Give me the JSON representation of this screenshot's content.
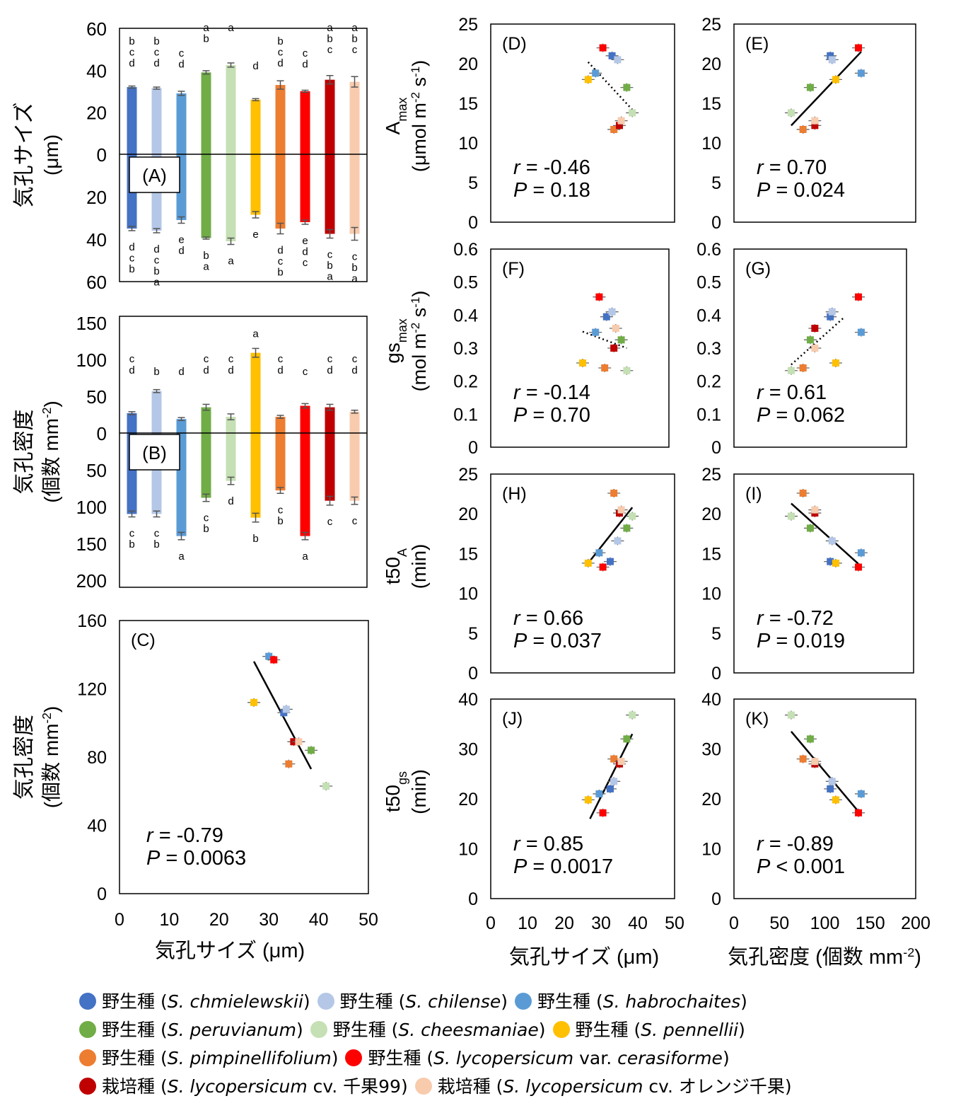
{
  "species": [
    {
      "label": "野生種",
      "name": "S. chmielewskii",
      "extra": "",
      "color": "#4472C4"
    },
    {
      "label": "野生種",
      "name": "S. chilense",
      "extra": "",
      "color": "#B4C7E7"
    },
    {
      "label": "野生種",
      "name": "S. habrochaites",
      "extra": "",
      "color": "#5B9BD5"
    },
    {
      "label": "野生種",
      "name": "S. peruvianum",
      "extra": "",
      "color": "#70AD47"
    },
    {
      "label": "野生種",
      "name": "S. cheesmaniae",
      "extra": "",
      "color": "#C5E0B4"
    },
    {
      "label": "野生種",
      "name": "S. pennellii",
      "extra": "",
      "color": "#FFC000"
    },
    {
      "label": "野生種",
      "name": "S. pimpinellifolium",
      "extra": "",
      "color": "#ED7D31"
    },
    {
      "label": "野生種",
      "name": "S. lycopersicum",
      "extra": "var. cerasiforme",
      "color": "#FF0000"
    },
    {
      "label": "栽培種",
      "name": "S. lycopersicum",
      "extra": "cv. 千果99",
      "color": "#C00000"
    },
    {
      "label": "栽培種",
      "name": "S. lycopersicum",
      "extra": "cv. オレンジ千果",
      "color": "#F8CBAD"
    }
  ],
  "legend_rows": [
    [
      0,
      1,
      2
    ],
    [
      3,
      4,
      5
    ],
    [
      6,
      7
    ],
    [
      8,
      9
    ]
  ],
  "chart_data": [
    {
      "panel": "(A)",
      "type": "bar",
      "ylabel": "気孔サイズ",
      "ylabel_unit": "(μm)",
      "upper_ticks": [
        "60",
        "40",
        "20",
        "0"
      ],
      "lower_ticks": [
        "20",
        "40",
        "60"
      ],
      "upper": {
        "values": [
          32,
          31.5,
          29,
          39,
          42.5,
          26,
          33,
          30,
          35.5,
          34.5
        ],
        "errors": [
          0.5,
          0.5,
          1,
          0.8,
          1,
          0.5,
          2,
          0.5,
          2,
          2.5
        ],
        "letters": [
          [
            "b",
            "c",
            "d"
          ],
          [
            "b",
            "c",
            "d"
          ],
          [
            "c",
            "d"
          ],
          [
            "a",
            "b"
          ],
          [
            "a"
          ],
          [
            "d"
          ],
          [
            "b",
            "c",
            "d"
          ],
          [
            "c",
            "d"
          ],
          [
            "a",
            "b",
            "c"
          ],
          [
            "a",
            "b",
            "c"
          ]
        ]
      },
      "lower": {
        "values": [
          35,
          36,
          31,
          39.5,
          41,
          28.5,
          35,
          32,
          37.5,
          37.5
        ],
        "errors": [
          1,
          1,
          1.5,
          0.5,
          1.5,
          1.5,
          2.5,
          1,
          2,
          3
        ],
        "letters": [
          [
            "d",
            "c",
            "b"
          ],
          [
            "d",
            "c",
            "b",
            "a"
          ],
          [
            "e",
            "d"
          ],
          [
            "b",
            "a"
          ],
          [
            "a"
          ],
          [
            "e"
          ],
          [
            "d",
            "c",
            "b"
          ],
          [
            "e",
            "d",
            "c"
          ],
          [
            "c",
            "b",
            "a"
          ],
          [
            "c",
            "b",
            "a"
          ]
        ]
      }
    },
    {
      "panel": "(B)",
      "type": "bar",
      "ylabel": "気孔密度",
      "ylabel_unit": "(個数 mm",
      "upper_ticks": [
        "150",
        "100",
        "50",
        "0"
      ],
      "lower_ticks": [
        "50",
        "100",
        "150",
        "200"
      ],
      "upper": {
        "values": [
          27,
          57,
          19,
          35,
          22,
          109,
          22,
          37,
          35,
          29
        ],
        "errors": [
          2,
          2,
          2,
          4,
          4,
          6,
          2,
          3,
          4,
          2
        ],
        "letters": [
          [
            "c",
            "d"
          ],
          [
            "b"
          ],
          [
            "d"
          ],
          [
            "c",
            "d"
          ],
          [
            "c",
            "d"
          ],
          [
            "a"
          ],
          [
            "c",
            "d"
          ],
          [
            "c"
          ],
          [
            "c",
            "d"
          ],
          [
            "c",
            "d"
          ]
        ]
      },
      "lower": {
        "values": [
          110,
          110,
          140,
          88,
          65,
          115,
          78,
          140,
          92,
          92
        ],
        "errors": [
          4,
          4,
          5,
          5,
          5,
          6,
          4,
          5,
          6,
          5
        ],
        "letters": [
          [
            "c",
            "b"
          ],
          [
            "c",
            "b"
          ],
          [
            "a"
          ],
          [
            "c",
            "b"
          ],
          [
            "d"
          ],
          [
            "b"
          ],
          [
            "c",
            "b"
          ],
          [
            "a"
          ],
          [
            "c"
          ],
          [
            "c"
          ]
        ]
      }
    },
    {
      "panel": "(C)",
      "type": "scatter",
      "xlabel": "気孔サイズ (μm)",
      "ylabel": "気孔密度",
      "ylabel_unit": "(個数 mm",
      "xlim": [
        0,
        50
      ],
      "ylim": [
        0,
        160
      ],
      "xticks": [
        "0",
        "10",
        "20",
        "30",
        "40",
        "50"
      ],
      "yticks": [
        "0",
        "40",
        "80",
        "120",
        "160"
      ],
      "x": [
        33,
        33.5,
        30,
        38.5,
        41.5,
        27,
        34,
        31,
        35,
        36
      ],
      "y": [
        106,
        108,
        139,
        84,
        63,
        112,
        76,
        137,
        89,
        89
      ],
      "trend": {
        "style": "solid",
        "x": [
          27,
          38.5
        ],
        "y": [
          136,
          73
        ]
      },
      "r": "r = -0.79",
      "p": "P = 0.0063"
    },
    {
      "panel": "(D)",
      "type": "scatter",
      "ylabel": "A",
      "ylabel_sub": "max",
      "ylabel_unit": "(μmol m",
      "xlim": [
        0,
        50
      ],
      "ylim": [
        0,
        25
      ],
      "yticks": [
        "0",
        "5",
        "10",
        "15",
        "20",
        "25"
      ],
      "x": [
        33,
        34.5,
        28.5,
        37,
        38.5,
        26.5,
        33.5,
        30.5,
        35,
        35.5
      ],
      "y": [
        21,
        20.5,
        18.8,
        17,
        13.8,
        18,
        11.7,
        22,
        12.2,
        12.8
      ],
      "trend": {
        "style": "dotted",
        "x": [
          26.5,
          38.5
        ],
        "y": [
          20.2,
          14.2
        ]
      },
      "r": "r = -0.46",
      "p": "P = 0.18"
    },
    {
      "panel": "(E)",
      "type": "scatter",
      "xlim": [
        0,
        200
      ],
      "ylim": [
        0,
        25
      ],
      "yticks": [
        "0",
        "5",
        "10",
        "15",
        "20",
        "25"
      ],
      "x": [
        106,
        108,
        140,
        84,
        63,
        112,
        76,
        137,
        89,
        89
      ],
      "y": [
        21,
        20.5,
        18.8,
        17,
        13.8,
        18,
        11.7,
        22,
        12.2,
        12.8
      ],
      "trend": {
        "style": "solid",
        "x": [
          63,
          140
        ],
        "y": [
          12.2,
          21.5
        ]
      },
      "r": "r = 0.70",
      "p": "P = 0.024"
    },
    {
      "panel": "(F)",
      "type": "scatter",
      "ylabel": "gs",
      "ylabel_sub": "max",
      "ylabel_unit": "(mol m",
      "xlim": [
        0,
        50
      ],
      "ylim": [
        0,
        0.6
      ],
      "yticks": [
        "0",
        "0.1",
        "0.2",
        "0.3",
        "0.4",
        "0.5",
        "0.6"
      ],
      "x": [
        31.5,
        33,
        28.5,
        35.5,
        37,
        25,
        31,
        29.5,
        33.5,
        34
      ],
      "y": [
        0.395,
        0.41,
        0.348,
        0.325,
        0.232,
        0.255,
        0.24,
        0.455,
        0.3,
        0.36
      ],
      "trend": {
        "style": "dotted",
        "x": [
          25,
          37
        ],
        "y": [
          0.35,
          0.3
        ]
      },
      "r": "r = -0.14",
      "p": "P = 0.70"
    },
    {
      "panel": "(G)",
      "type": "scatter",
      "xlim": [
        0,
        200
      ],
      "ylim": [
        0,
        0.6
      ],
      "yticks": [
        "0",
        "0.1",
        "0.2",
        "0.3",
        "0.4",
        "0.5",
        "0.6"
      ],
      "x": [
        106,
        108,
        140,
        84,
        63,
        112,
        76,
        137,
        89,
        89
      ],
      "y": [
        0.395,
        0.41,
        0.348,
        0.325,
        0.232,
        0.255,
        0.24,
        0.455,
        0.36,
        0.3
      ],
      "trend": {
        "style": "dotted",
        "x": [
          63,
          120
        ],
        "y": [
          0.25,
          0.39
        ]
      },
      "r": "r = 0.61",
      "p": "P = 0.062"
    },
    {
      "panel": "(H)",
      "type": "scatter",
      "ylabel": "t50",
      "ylabel_sub": "A",
      "ylabel_unit": "(min)",
      "xlim": [
        0,
        50
      ],
      "ylim": [
        0,
        25
      ],
      "yticks": [
        "0",
        "5",
        "10",
        "15",
        "20",
        "25"
      ],
      "x": [
        32.5,
        34.5,
        29.5,
        37,
        38.5,
        26.5,
        33.5,
        30.5,
        35,
        35.5
      ],
      "y": [
        14,
        16.6,
        15.1,
        18.2,
        19.7,
        13.8,
        22.6,
        13.3,
        20.1,
        20.5
      ],
      "trend": {
        "style": "solid",
        "x": [
          26.5,
          38.5
        ],
        "y": [
          13.8,
          20.8
        ]
      },
      "r": "r = 0.66",
      "p": "P = 0.037"
    },
    {
      "panel": "(I)",
      "type": "scatter",
      "xlim": [
        0,
        200
      ],
      "ylim": [
        0,
        25
      ],
      "yticks": [
        "0",
        "5",
        "10",
        "15",
        "20",
        "25"
      ],
      "x": [
        106,
        108,
        140,
        84,
        63,
        112,
        76,
        137,
        89,
        89
      ],
      "y": [
        14,
        16.6,
        15.1,
        18.2,
        19.7,
        13.8,
        22.6,
        13.3,
        20.1,
        20.5
      ],
      "trend": {
        "style": "solid",
        "x": [
          63,
          140
        ],
        "y": [
          21.3,
          13.4
        ]
      },
      "r": "r = -0.72",
      "p": "P = 0.019"
    },
    {
      "panel": "(J)",
      "type": "scatter",
      "ylabel": "t50",
      "ylabel_sub": "gs",
      "ylabel_unit": "(min)",
      "xlim": [
        0,
        50
      ],
      "ylim": [
        0,
        40
      ],
      "yticks": [
        "0",
        "10",
        "20",
        "30",
        "40"
      ],
      "x": [
        32.5,
        33.5,
        29.5,
        37,
        38.5,
        26.5,
        33.5,
        30.5,
        35,
        35.5
      ],
      "y": [
        22,
        23.5,
        21,
        32,
        36.8,
        19.8,
        28,
        17.2,
        27,
        27.5
      ],
      "trend": {
        "style": "solid",
        "x": [
          27,
          38.5
        ],
        "y": [
          16,
          33
        ]
      },
      "r": "r = 0.85",
      "p": "P = 0.0017"
    },
    {
      "panel": "(K)",
      "type": "scatter",
      "xlim": [
        0,
        200
      ],
      "ylim": [
        0,
        40
      ],
      "yticks": [
        "0",
        "10",
        "20",
        "30",
        "40"
      ],
      "x": [
        106,
        108,
        140,
        84,
        63,
        112,
        76,
        137,
        89,
        89
      ],
      "y": [
        22,
        23.5,
        21,
        32,
        36.8,
        19.8,
        28,
        17.2,
        27,
        27.5
      ],
      "trend": {
        "style": "solid",
        "x": [
          63,
          140
        ],
        "y": [
          33.5,
          16.8
        ]
      },
      "r": "r = -0.89",
      "p": "P < 0.001"
    }
  ],
  "xaxes": {
    "left": {
      "ticks": [
        "0",
        "10",
        "20",
        "30",
        "40",
        "50"
      ],
      "label": "気孔サイズ (μm)"
    },
    "right": {
      "ticks": [
        "0",
        "50",
        "100",
        "150",
        "200"
      ],
      "label": "気孔密度 (個数 mm"
    }
  }
}
